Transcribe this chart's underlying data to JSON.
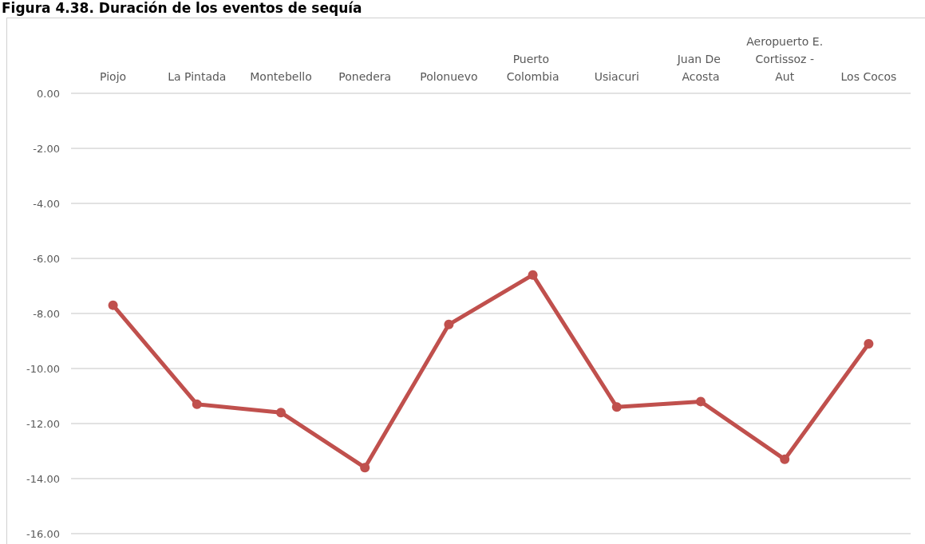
{
  "chart_data": {
    "type": "line",
    "title": "Figura 4.38. Duración de los eventos de sequía",
    "categories": [
      "Piojo",
      "La Pintada",
      "Montebello",
      "Ponedera",
      "Polonuevo",
      "Puerto Colombia",
      "Usiacuri",
      "Juan De Acosta",
      "Aeropuerto E. Cortissoz - Aut",
      "Los Cocos"
    ],
    "series": [
      {
        "color": "#c0504d",
        "values": [
          -7.7,
          -11.3,
          -11.6,
          -13.6,
          -8.4,
          -6.6,
          -11.4,
          -11.2,
          -13.3,
          -9.1
        ]
      }
    ],
    "ylim": [
      -16,
      0
    ],
    "yticks": [
      {
        "value": 0,
        "label": "0.00"
      },
      {
        "value": -2,
        "label": "-2.00"
      },
      {
        "value": -4,
        "label": "-4.00"
      },
      {
        "value": -6,
        "label": "-6.00"
      },
      {
        "value": -8,
        "label": "-8.00"
      },
      {
        "value": -10,
        "label": "-10.00"
      },
      {
        "value": -12,
        "label": "-12.00"
      },
      {
        "value": -14,
        "label": "-14.00"
      },
      {
        "value": -16,
        "label": "-16.00"
      }
    ],
    "grid": "y",
    "marker": "circle",
    "line_style": "solid"
  }
}
